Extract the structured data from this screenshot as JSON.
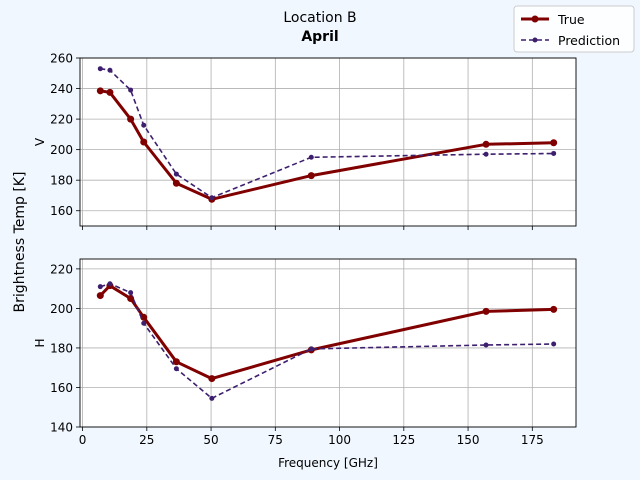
{
  "title": "Location B",
  "subtitle": "April",
  "shared_ylabel": "Brightness Temp [K]",
  "colors": {
    "true": "#800000",
    "prediction": "#3d1f6e",
    "grid": "#b0b0b0",
    "background": "#f0f7ff"
  },
  "chart_data": [
    {
      "type": "line",
      "panel_label": "V",
      "xlim": [
        -1,
        192
      ],
      "ylim": [
        150,
        260
      ],
      "yticks": [
        160,
        180,
        200,
        220,
        240,
        260
      ],
      "xticks": [
        0,
        25,
        50,
        75,
        100,
        125,
        150,
        175
      ],
      "show_xtick_labels": false,
      "grid": true,
      "legend": "top-right",
      "series": [
        {
          "name": "True",
          "style": "solid",
          "x": [
            6.9,
            10.65,
            18.7,
            23.8,
            36.5,
            50.3,
            89,
            157,
            183.31
          ],
          "y": [
            238.5,
            237.5,
            220,
            205,
            178,
            167.5,
            183,
            203.5,
            204.5
          ]
        },
        {
          "name": "Prediction",
          "style": "dashed",
          "x": [
            6.9,
            10.65,
            18.7,
            23.8,
            36.5,
            50.3,
            89,
            157,
            183.31
          ],
          "y": [
            253,
            252,
            239,
            216,
            184,
            168.5,
            195,
            197,
            197.5
          ]
        }
      ]
    },
    {
      "type": "line",
      "panel_label": "H",
      "xlim": [
        -1,
        192
      ],
      "ylim": [
        140,
        225
      ],
      "yticks": [
        140,
        160,
        180,
        200,
        220
      ],
      "xticks": [
        0,
        25,
        50,
        75,
        100,
        125,
        150,
        175
      ],
      "xtick_labels": [
        "0",
        "25",
        "50",
        "75",
        "100",
        "125",
        "150",
        "175"
      ],
      "xlabel": "Frequency [GHz]",
      "grid": true,
      "series": [
        {
          "name": "True",
          "style": "solid",
          "x": [
            6.9,
            10.65,
            18.7,
            23.8,
            36.5,
            50.3,
            89,
            157,
            183.31
          ],
          "y": [
            206.5,
            211.5,
            205,
            195.5,
            173,
            164.5,
            179,
            198.5,
            199.5
          ]
        },
        {
          "name": "Prediction",
          "style": "dashed",
          "x": [
            6.9,
            10.65,
            18.7,
            23.8,
            36.5,
            50.3,
            89,
            157,
            183.31
          ],
          "y": [
            211,
            212.5,
            208,
            192.5,
            169.5,
            154.5,
            179.5,
            181.5,
            182
          ]
        }
      ]
    }
  ],
  "legend": {
    "entries": [
      "True",
      "Prediction"
    ]
  }
}
